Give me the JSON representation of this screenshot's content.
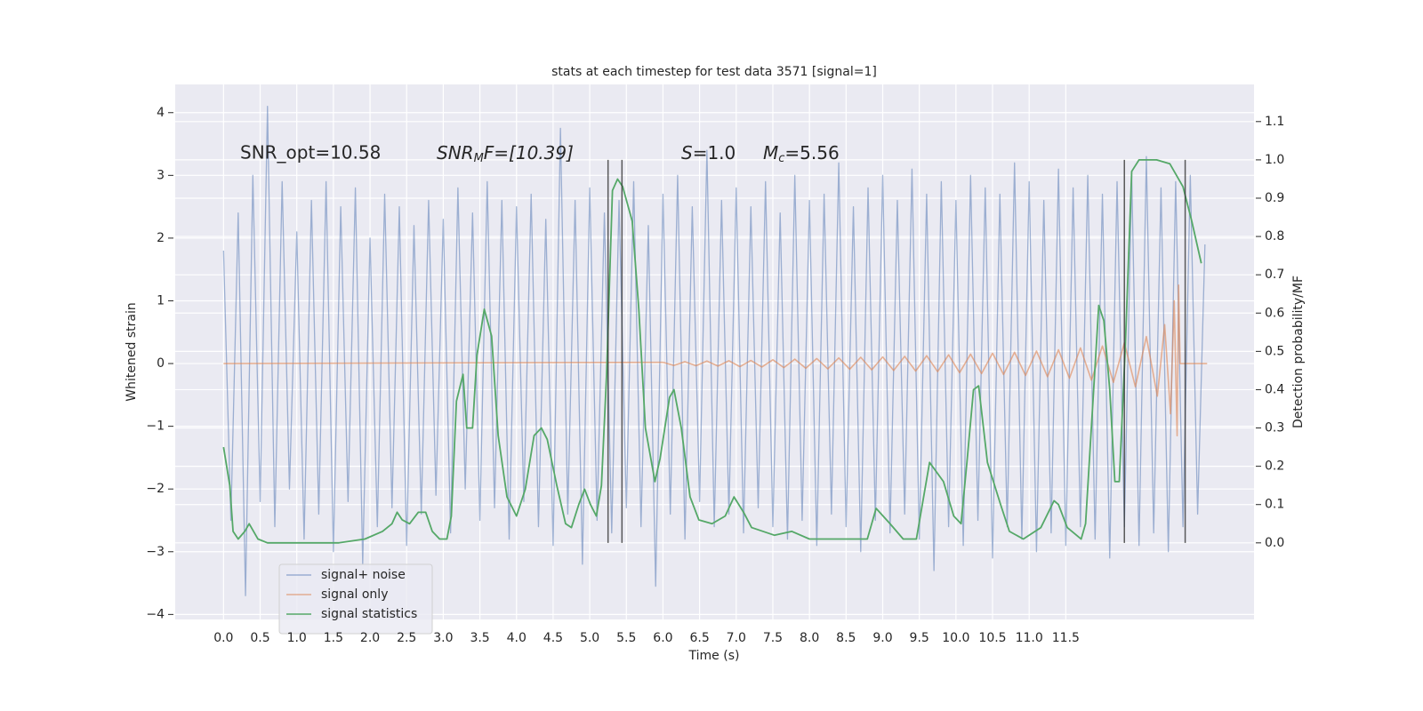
{
  "chart_data": {
    "type": "line",
    "title": "stats at each timestep for test data 3571 [signal=1]",
    "xlabel": "Time (s)",
    "ylabel": "Whitened strain",
    "y2label": "Detection probability/MF",
    "annotations": [
      [
        "SNR_opt=10.58"
      ],
      [
        "SNR",
        "M",
        "F=[10.39]"
      ],
      [
        "S",
        "=1.0"
      ],
      [
        "M",
        "c",
        "=5.56"
      ]
    ],
    "xlim": [
      -0.66,
      14.07
    ],
    "ylim": [
      -4.08,
      4.45
    ],
    "y2lim": [
      -0.2,
      1.197
    ],
    "xticks": [
      {
        "value": 0,
        "label": "0.0"
      },
      0.5,
      {
        "value": 1,
        "label": "1.0"
      },
      1.5,
      {
        "value": 2,
        "label": "2.0"
      },
      2.5,
      {
        "value": 3,
        "label": "3.0"
      },
      3.5,
      {
        "value": 4,
        "label": "4.0"
      },
      4.5,
      {
        "value": 5,
        "label": "5.0"
      },
      5.5,
      {
        "value": 6,
        "label": "6.0"
      },
      6.5,
      {
        "value": 7,
        "label": "7.0"
      },
      7.5,
      {
        "value": 8,
        "label": "8.0"
      },
      8.5,
      {
        "value": 9,
        "label": "9.0"
      },
      9.5,
      {
        "value": 10,
        "label": "10.0"
      },
      10.5,
      {
        "value": 11,
        "label": "11.0"
      },
      11.5
    ],
    "yticks": [
      {
        "value": -4,
        "label": "−4"
      },
      {
        "value": -3,
        "label": "−3"
      },
      {
        "value": -2,
        "label": "−2"
      },
      {
        "value": -1,
        "label": "−1"
      },
      0,
      1,
      2,
      3,
      4
    ],
    "y2ticks": [
      {
        "value": 0,
        "label": "0.0"
      },
      0.1,
      0.2,
      0.3,
      0.4,
      0.5,
      0.6,
      0.7,
      0.8,
      0.9,
      {
        "value": 1,
        "label": "1.0"
      },
      1.1
    ],
    "grid": true,
    "legend": "lower left",
    "series": [
      {
        "name": "signal+ noise",
        "color": "#4c72b0",
        "x": [
          0,
          0.1,
          0.2,
          0.3,
          0.4,
          0.5,
          0.6,
          0.7,
          0.8,
          0.9,
          1,
          1.1,
          1.2,
          1.3,
          1.4,
          1.5,
          1.6,
          1.7,
          1.8,
          1.9,
          2,
          2.1,
          2.2,
          2.3,
          2.4,
          2.5,
          2.6,
          2.7,
          2.8,
          2.9,
          3,
          3.1,
          3.2,
          3.3,
          3.4,
          3.5,
          3.6,
          3.7,
          3.8,
          3.9,
          4,
          4.1,
          4.2,
          4.3,
          4.4,
          4.5,
          4.6,
          4.7,
          4.8,
          4.9,
          5,
          5.1,
          5.2,
          5.3,
          5.4,
          5.5,
          5.6,
          5.7,
          5.8,
          5.9,
          6,
          6.1,
          6.2,
          6.3,
          6.4,
          6.5,
          6.6,
          6.7,
          6.8,
          6.9,
          7,
          7.1,
          7.2,
          7.3,
          7.4,
          7.5,
          7.6,
          7.7,
          7.8,
          7.9,
          8,
          8.1,
          8.2,
          8.3,
          8.4,
          8.5,
          8.6,
          8.7,
          8.8,
          8.9,
          9,
          9.1,
          9.2,
          9.3,
          9.4,
          9.5,
          9.6,
          9.7,
          9.8,
          9.9,
          10,
          10.1,
          10.2,
          10.3,
          10.4,
          10.5,
          10.6,
          10.7,
          10.8,
          10.9,
          11,
          11.1,
          11.2,
          11.3,
          11.4,
          11.5,
          11.6,
          11.7,
          11.8,
          11.9,
          12,
          12.1,
          12.2,
          12.3,
          12.4,
          12.5,
          12.6,
          12.7,
          12.8,
          12.9,
          13,
          13.1,
          13.2,
          13.3,
          13.4
        ],
        "values": [
          1.8,
          -2.5,
          2.4,
          -3.7,
          3.0,
          -2.2,
          4.1,
          -2.6,
          2.9,
          -2.0,
          2.1,
          -2.8,
          2.6,
          -2.4,
          2.9,
          -3.0,
          2.5,
          -2.2,
          2.8,
          -3.2,
          2.0,
          -2.6,
          2.7,
          -2.3,
          2.5,
          -2.9,
          2.2,
          -2.4,
          2.6,
          -2.1,
          2.3,
          -2.7,
          2.8,
          -2.0,
          2.4,
          -2.5,
          2.9,
          -2.3,
          2.6,
          -2.8,
          2.5,
          -2.2,
          2.7,
          -2.6,
          2.3,
          -2.9,
          3.75,
          -2.4,
          2.6,
          -3.2,
          2.8,
          -2.5,
          2.4,
          -2.7,
          2.6,
          -2.3,
          2.9,
          -2.6,
          2.2,
          -3.55,
          2.7,
          -2.4,
          3.0,
          -2.8,
          2.5,
          -2.2,
          3.4,
          -2.6,
          2.6,
          -2.4,
          2.8,
          -2.7,
          2.5,
          -2.3,
          2.9,
          -2.6,
          2.4,
          -2.8,
          3.0,
          -2.5,
          2.6,
          -2.9,
          2.7,
          -2.4,
          3.2,
          -2.6,
          2.5,
          -3.0,
          2.8,
          -2.5,
          3.0,
          -2.7,
          2.6,
          -2.4,
          3.1,
          -2.8,
          2.7,
          -3.3,
          2.9,
          -2.6,
          2.6,
          -2.9,
          3.0,
          -2.5,
          2.8,
          -3.1,
          2.7,
          -2.6,
          3.2,
          -2.8,
          2.9,
          -3.0,
          2.6,
          -2.7,
          3.1,
          -2.9,
          2.8,
          -2.6,
          3.0,
          -2.8,
          2.7,
          -3.1,
          2.9,
          -2.6,
          3.0,
          -2.9,
          3.3,
          -2.7,
          2.8,
          -3.0,
          2.9,
          -2.6,
          3.0,
          -2.4,
          1.9
        ]
      },
      {
        "name": "signal only",
        "color": "#dd8452",
        "x": [
          0,
          6.0,
          6.15,
          6.3,
          6.45,
          6.6,
          6.75,
          6.9,
          7.05,
          7.2,
          7.35,
          7.5,
          7.65,
          7.8,
          7.95,
          8.1,
          8.25,
          8.4,
          8.55,
          8.7,
          8.85,
          9.0,
          9.15,
          9.3,
          9.45,
          9.6,
          9.75,
          9.9,
          10.05,
          10.2,
          10.35,
          10.5,
          10.65,
          10.8,
          10.95,
          11.1,
          11.25,
          11.4,
          11.55,
          11.7,
          11.85,
          12.0,
          12.15,
          12.3,
          12.45,
          12.6,
          12.75,
          12.85,
          12.93,
          12.98,
          13.02,
          13.04,
          13.06,
          13.43
        ],
        "values": [
          0,
          0.02,
          -0.03,
          0.03,
          -0.035,
          0.04,
          -0.04,
          0.045,
          -0.05,
          0.05,
          -0.055,
          0.06,
          -0.065,
          0.07,
          -0.075,
          0.08,
          -0.085,
          0.09,
          -0.09,
          0.1,
          -0.1,
          0.105,
          -0.11,
          0.115,
          -0.12,
          0.125,
          -0.13,
          0.14,
          -0.145,
          0.15,
          -0.16,
          0.165,
          -0.175,
          0.18,
          -0.19,
          0.2,
          -0.21,
          0.22,
          -0.235,
          0.25,
          -0.265,
          0.28,
          -0.3,
          0.33,
          -0.37,
          0.43,
          -0.52,
          0.62,
          -0.8,
          1.0,
          -1.15,
          1.25,
          0,
          0
        ]
      },
      {
        "name": "signal statistics",
        "color": "#55a868",
        "axis": "y2",
        "x": [
          0,
          0.085,
          0.13,
          0.2,
          0.29,
          0.35,
          0.47,
          0.6,
          0.85,
          1.08,
          1.57,
          1.93,
          2.17,
          2.3,
          2.37,
          2.44,
          2.54,
          2.66,
          2.76,
          2.85,
          2.95,
          3.05,
          3.11,
          3.18,
          3.27,
          3.32,
          3.4,
          3.46,
          3.56,
          3.66,
          3.75,
          3.87,
          4.0,
          4.12,
          4.24,
          4.34,
          4.42,
          4.55,
          4.67,
          4.75,
          4.85,
          4.93,
          5.01,
          5.09,
          5.16,
          5.23,
          5.31,
          5.38,
          5.45,
          5.58,
          5.67,
          5.76,
          5.89,
          5.96,
          6.09,
          6.15,
          6.25,
          6.37,
          6.49,
          6.67,
          6.85,
          6.97,
          7.1,
          7.21,
          7.52,
          7.76,
          8.0,
          8.37,
          8.61,
          8.79,
          8.91,
          9.1,
          9.28,
          9.46,
          9.64,
          9.83,
          9.97,
          10.07,
          10.15,
          10.24,
          10.31,
          10.43,
          10.61,
          10.73,
          10.92,
          11.16,
          11.34,
          11.4,
          11.52,
          11.71,
          11.77,
          11.95,
          12.02,
          12.1,
          12.17,
          12.23,
          12.31,
          12.4,
          12.5,
          12.74,
          12.92,
          13.1,
          13.22,
          13.35
        ],
        "values": [
          0.25,
          0.15,
          0.03,
          0.01,
          0.03,
          0.05,
          0.01,
          0.0,
          0.0,
          0.0,
          0.0,
          0.01,
          0.03,
          0.05,
          0.08,
          0.06,
          0.05,
          0.08,
          0.08,
          0.03,
          0.01,
          0.01,
          0.07,
          0.37,
          0.44,
          0.3,
          0.3,
          0.49,
          0.61,
          0.54,
          0.28,
          0.12,
          0.07,
          0.14,
          0.28,
          0.3,
          0.27,
          0.15,
          0.05,
          0.04,
          0.1,
          0.14,
          0.1,
          0.07,
          0.15,
          0.44,
          0.92,
          0.95,
          0.93,
          0.84,
          0.61,
          0.3,
          0.16,
          0.22,
          0.38,
          0.4,
          0.3,
          0.12,
          0.06,
          0.05,
          0.07,
          0.12,
          0.08,
          0.04,
          0.02,
          0.03,
          0.01,
          0.01,
          0.01,
          0.01,
          0.09,
          0.05,
          0.01,
          0.01,
          0.21,
          0.16,
          0.07,
          0.05,
          0.21,
          0.4,
          0.41,
          0.21,
          0.1,
          0.03,
          0.01,
          0.04,
          0.11,
          0.1,
          0.04,
          0.01,
          0.05,
          0.62,
          0.58,
          0.4,
          0.16,
          0.16,
          0.5,
          0.97,
          1.0,
          1.0,
          0.99,
          0.93,
          0.84,
          0.73
        ]
      }
    ],
    "vlines": {
      "x": [
        5.25,
        5.44,
        12.3,
        13.13
      ],
      "y2": [
        0,
        1
      ],
      "color": "#333333"
    }
  }
}
